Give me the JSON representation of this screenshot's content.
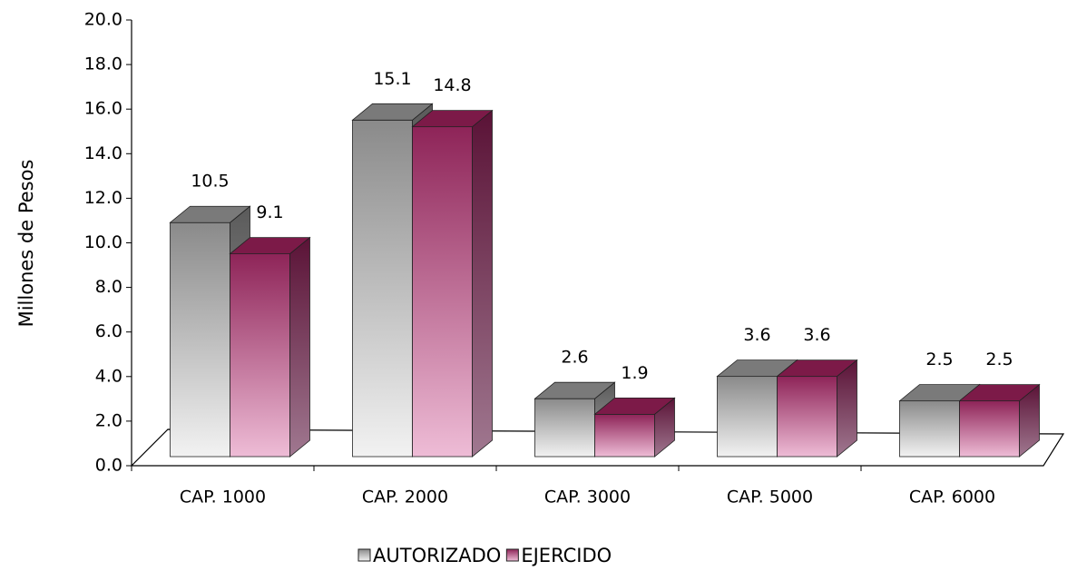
{
  "chart_data": {
    "type": "bar3d",
    "ylabel": "Millones de Pesos",
    "categories": [
      "CAP. 1000",
      "CAP. 2000",
      "CAP. 3000",
      "CAP. 5000",
      "CAP. 6000"
    ],
    "series": [
      {
        "name": "AUTORIZADO",
        "color": "#a0a0a0",
        "values": [
          10.5,
          15.1,
          2.6,
          3.6,
          2.5
        ]
      },
      {
        "name": "EJERCIDO",
        "color": "#a0306a",
        "values": [
          9.1,
          14.8,
          1.9,
          3.6,
          2.5
        ]
      }
    ],
    "ylim": [
      0,
      20
    ],
    "yticks": [
      {
        "value": 0,
        "label": "0.0"
      },
      {
        "value": 2,
        "label": "2.0"
      },
      {
        "value": 4,
        "label": "4.0"
      },
      {
        "value": 6,
        "label": "6.0"
      },
      {
        "value": 8,
        "label": "8.0"
      },
      {
        "value": 10,
        "label": "10.0"
      },
      {
        "value": 12,
        "label": "12.0"
      },
      {
        "value": 14,
        "label": "14.0"
      },
      {
        "value": 16,
        "label": "16.0"
      },
      {
        "value": 18,
        "label": "18.0"
      },
      {
        "value": 20,
        "label": "20.0"
      }
    ],
    "legend": "bottom"
  }
}
